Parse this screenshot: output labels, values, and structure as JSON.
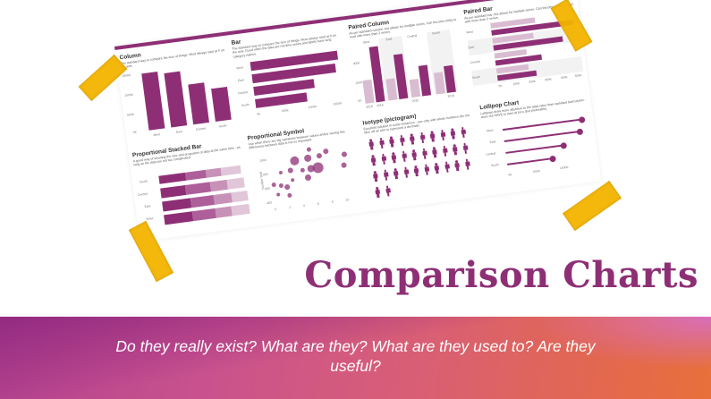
{
  "page": {
    "title": "Comparison Charts",
    "subtitle": "Do they really exist? What are they? What are they used to? Are they useful?",
    "colors": {
      "accent": "#8e2f76",
      "accent_light": "#d9bcd2",
      "tape": "#f4b400",
      "banner_start": "#8e267e",
      "banner_end": "#e8703a"
    }
  },
  "sheet": {
    "panels": {
      "column": {
        "title": "Column",
        "desc": "The standard way to compare the size of things. Must always start at 0 on the axis.",
        "yticks": [
          "1500K",
          "1000K",
          "500K",
          "0K"
        ],
        "categories": [
          "West",
          "East",
          "Central",
          "South"
        ]
      },
      "bar": {
        "title": "Bar",
        "desc": "The standard way to compare the size of things. Must always start at 0 on the axis. Good when the data are not time series and labels have long category names.",
        "xticks": [
          "0K",
          "500K",
          "1000K",
          "1500K"
        ],
        "categories": [
          "West",
          "East",
          "Central",
          "South"
        ]
      },
      "paired_column": {
        "title": "Paired Column",
        "desc": "As per standard column, but allows for multiple series. Can become tricky to read with more than 2 series.",
        "yticks": [
          "400K",
          "200K",
          "0K"
        ],
        "groups": [
          "West",
          "East",
          "Central",
          "South"
        ],
        "series_labels": [
          "2015",
          "2016"
        ]
      },
      "paired_bar": {
        "title": "Paired Bar",
        "desc": "As per standard bar, but allows for multiple series. Can become tricky to read with more than 2 series.",
        "groups": [
          "West",
          "East",
          "Central",
          "South"
        ],
        "series_labels": [
          "2015",
          "2016"
        ],
        "xticks": [
          "0K",
          "100K",
          "200K",
          "300K",
          "400K",
          "500K"
        ]
      },
      "stacked_bar": {
        "title": "Proportional Stacked Bar",
        "desc": "A good way of showing the size and proportion of data at the same time - as long as the data are not too complicated.",
        "categories": [
          "South",
          "Central",
          "East",
          "West"
        ]
      },
      "symbol": {
        "title": "Proportional Symbol",
        "desc": "Use when there are big variations between values and/or seeing fine differences between data is not so important.",
        "ylabel": "Number Sold",
        "yticks": [
          "1000",
          "800",
          "600",
          "400"
        ],
        "xticks": [
          "0",
          "2",
          "4",
          "6",
          "8",
          "10"
        ]
      },
      "isotype": {
        "title": "Isotype (pictogram)",
        "desc": "Excellent solution in some instances - use only with whole numbers (do not slice off an arm to represent a decimal)."
      },
      "lollipop": {
        "title": "Lollipop Chart",
        "desc": "Lollipops draw more attention to the data value than standard bar/column - does not HAVE to start at zero (but preferable).",
        "categories": [
          "West",
          "East",
          "Central",
          "South"
        ],
        "xticks": [
          "0K",
          "500K",
          "1000K"
        ]
      }
    }
  },
  "chart_data": [
    {
      "type": "bar",
      "title": "Column",
      "categories": [
        "West",
        "East",
        "Central",
        "South"
      ],
      "values": [
        1500,
        1450,
        1050,
        900
      ],
      "ylim": [
        0,
        1500
      ],
      "ylabel": "K"
    },
    {
      "type": "bar",
      "orientation": "horizontal",
      "title": "Bar",
      "categories": [
        "West",
        "East",
        "Central",
        "South"
      ],
      "values": [
        1500,
        1450,
        1050,
        900
      ],
      "xlim": [
        0,
        1500
      ]
    },
    {
      "type": "bar",
      "title": "Paired Column",
      "categories": [
        "West",
        "East",
        "Central",
        "South"
      ],
      "series": [
        {
          "name": "2015",
          "values": [
            230,
            210,
            190,
            210
          ]
        },
        {
          "name": "2016",
          "values": [
            460,
            380,
            280,
            260
          ]
        }
      ],
      "ylim": [
        0,
        450
      ]
    },
    {
      "type": "bar",
      "orientation": "horizontal",
      "title": "Paired Bar",
      "categories": [
        "West",
        "East",
        "Central",
        "South"
      ],
      "series": [
        {
          "name": "2015",
          "values": [
            270,
            250,
            200,
            200
          ]
        },
        {
          "name": "2016",
          "values": [
            490,
            420,
            290,
            250
          ]
        }
      ],
      "xlim": [
        0,
        500
      ]
    },
    {
      "type": "bar",
      "stacked": true,
      "orientation": "horizontal",
      "title": "Proportional Stacked Bar",
      "categories": [
        "South",
        "Central",
        "East",
        "West"
      ]
    },
    {
      "type": "scatter",
      "title": "Proportional Symbol",
      "ylabel": "Number Sold",
      "ylim": [
        400,
        1000
      ],
      "xlim": [
        0,
        10
      ]
    },
    {
      "type": "table",
      "title": "Isotype (pictogram)",
      "rows": [
        10,
        10,
        10,
        2
      ]
    },
    {
      "type": "bar",
      "title": "Lollipop Chart",
      "categories": [
        "West",
        "East",
        "Central",
        "South"
      ],
      "values": [
        1250,
        1200,
        1000,
        800
      ]
    }
  ]
}
